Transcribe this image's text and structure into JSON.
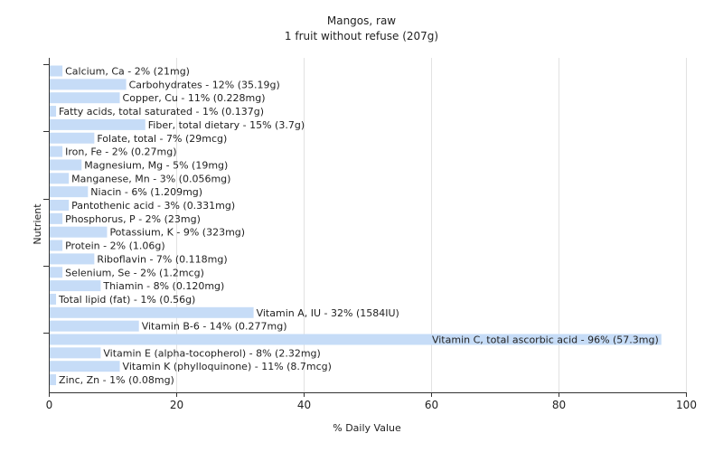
{
  "chart_data": {
    "type": "bar",
    "orientation": "horizontal",
    "title": "Mangos, raw",
    "subtitle": "1 fruit without refuse (207g)",
    "xlabel": "% Daily Value",
    "ylabel": "Nutrient",
    "xlim": [
      0,
      100
    ],
    "xticks": [
      0,
      20,
      40,
      60,
      80,
      100
    ],
    "grid": true,
    "bar_color": "#c6dcf7",
    "categories": [
      "Calcium, Ca",
      "Carbohydrates",
      "Copper, Cu",
      "Fatty acids, total saturated",
      "Fiber, total dietary",
      "Folate, total",
      "Iron, Fe",
      "Magnesium, Mg",
      "Manganese, Mn",
      "Niacin",
      "Pantothenic acid",
      "Phosphorus, P",
      "Potassium, K",
      "Protein",
      "Riboflavin",
      "Selenium, Se",
      "Thiamin",
      "Total lipid (fat)",
      "Vitamin A, IU",
      "Vitamin B-6",
      "Vitamin C, total ascorbic acid",
      "Vitamin E (alpha-tocopherol)",
      "Vitamin K (phylloquinone)",
      "Zinc, Zn"
    ],
    "values": [
      2,
      12,
      11,
      1,
      15,
      7,
      2,
      5,
      3,
      6,
      3,
      2,
      9,
      2,
      7,
      2,
      8,
      1,
      32,
      14,
      96,
      8,
      11,
      1
    ],
    "labels": [
      "Calcium, Ca - 2% (21mg)",
      "Carbohydrates - 12% (35.19g)",
      "Copper, Cu - 11% (0.228mg)",
      "Fatty acids, total saturated - 1% (0.137g)",
      "Fiber, total dietary - 15% (3.7g)",
      "Folate, total - 7% (29mcg)",
      "Iron, Fe - 2% (0.27mg)",
      "Magnesium, Mg - 5% (19mg)",
      "Manganese, Mn - 3% (0.056mg)",
      "Niacin - 6% (1.209mg)",
      "Pantothenic acid - 3% (0.331mg)",
      "Phosphorus, P - 2% (23mg)",
      "Potassium, K - 9% (323mg)",
      "Protein - 2% (1.06g)",
      "Riboflavin - 7% (0.118mg)",
      "Selenium, Se - 2% (1.2mcg)",
      "Thiamin - 8% (0.120mg)",
      "Total lipid (fat) - 1% (0.56g)",
      "Vitamin A, IU - 32% (1584IU)",
      "Vitamin B-6 - 14% (0.277mg)",
      "Vitamin C, total ascorbic acid - 96% (57.3mg)",
      "Vitamin E (alpha-tocopherol) - 8% (2.32mg)",
      "Vitamin K (phylloquinone) - 11% (8.7mcg)",
      "Zinc, Zn - 1% (0.08mg)"
    ]
  }
}
